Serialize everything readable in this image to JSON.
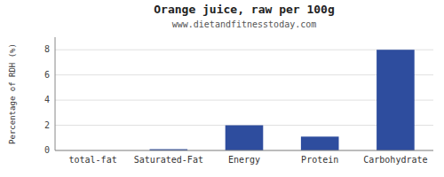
{
  "chart_data": {
    "type": "bar",
    "title": "Orange juice, raw per 100g",
    "subtitle": "www.dietandfitnesstoday.com",
    "categories": [
      "total-fat",
      "Saturated-Fat",
      "Energy",
      "Protein",
      "Carbohydrate"
    ],
    "values": [
      0.0,
      0.1,
      2.0,
      1.1,
      8.0
    ],
    "color": "#2e4d9e",
    "ylabel": "Percentage of RDH (%)",
    "ylim": [
      0,
      9
    ],
    "yticks": [
      0,
      2,
      4,
      6,
      8
    ],
    "grid": true
  }
}
